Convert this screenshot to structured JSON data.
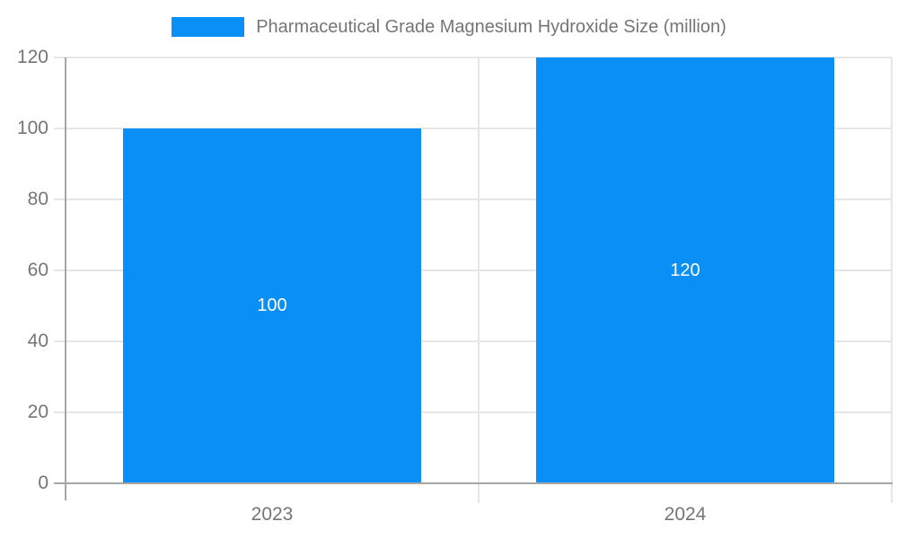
{
  "chart_data": {
    "type": "bar",
    "categories": [
      "2023",
      "2024"
    ],
    "series": [
      {
        "name": "Pharmaceutical Grade Magnesium Hydroxide Size (million)",
        "values": [
          100,
          120
        ]
      }
    ],
    "bar_labels": [
      "100",
      "120"
    ],
    "title": "",
    "xlabel": "",
    "ylabel": "",
    "ylim": [
      0,
      120
    ],
    "yticks": [
      0,
      20,
      40,
      60,
      80,
      100,
      120
    ],
    "grid": true,
    "legend_position": "top"
  },
  "legend": {
    "label": "Pharmaceutical Grade Magnesium Hydroxide Size (million)"
  },
  "colors": {
    "bar": "#0A8FF7",
    "grid": "#e6e6e6",
    "axis": "#a6a6a6",
    "axis_label": "#757575",
    "data_label": "#ffffff",
    "background": "#ffffff"
  }
}
